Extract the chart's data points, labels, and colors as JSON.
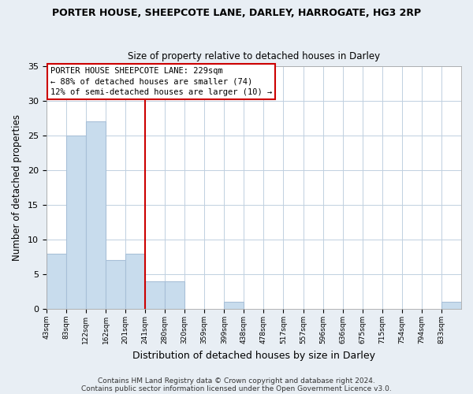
{
  "title": "PORTER HOUSE, SHEEPCOTE LANE, DARLEY, HARROGATE, HG3 2RP",
  "subtitle": "Size of property relative to detached houses in Darley",
  "xlabel": "Distribution of detached houses by size in Darley",
  "ylabel": "Number of detached properties",
  "bin_labels": [
    "43sqm",
    "83sqm",
    "122sqm",
    "162sqm",
    "201sqm",
    "241sqm",
    "280sqm",
    "320sqm",
    "359sqm",
    "399sqm",
    "438sqm",
    "478sqm",
    "517sqm",
    "557sqm",
    "596sqm",
    "636sqm",
    "675sqm",
    "715sqm",
    "754sqm",
    "794sqm",
    "833sqm"
  ],
  "bar_values": [
    8,
    25,
    27,
    7,
    8,
    4,
    4,
    0,
    0,
    1,
    0,
    0,
    0,
    0,
    0,
    0,
    0,
    0,
    0,
    0,
    1
  ],
  "bar_color": "#c8dced",
  "bar_edge_color": "#a8c0d8",
  "vline_x_index": 5,
  "annotation_text_line1": "PORTER HOUSE SHEEPCOTE LANE: 229sqm",
  "annotation_text_line2": "← 88% of detached houses are smaller (74)",
  "annotation_text_line3": "12% of semi-detached houses are larger (10) →",
  "annotation_box_edge_color": "#cc0000",
  "vline_color": "#cc0000",
  "ylim": [
    0,
    35
  ],
  "yticks": [
    0,
    5,
    10,
    15,
    20,
    25,
    30,
    35
  ],
  "footer_line1": "Contains HM Land Registry data © Crown copyright and database right 2024.",
  "footer_line2": "Contains public sector information licensed under the Open Government Licence v3.0.",
  "background_color": "#e8eef4",
  "plot_background_color": "#ffffff",
  "grid_color": "#c0d0e0"
}
